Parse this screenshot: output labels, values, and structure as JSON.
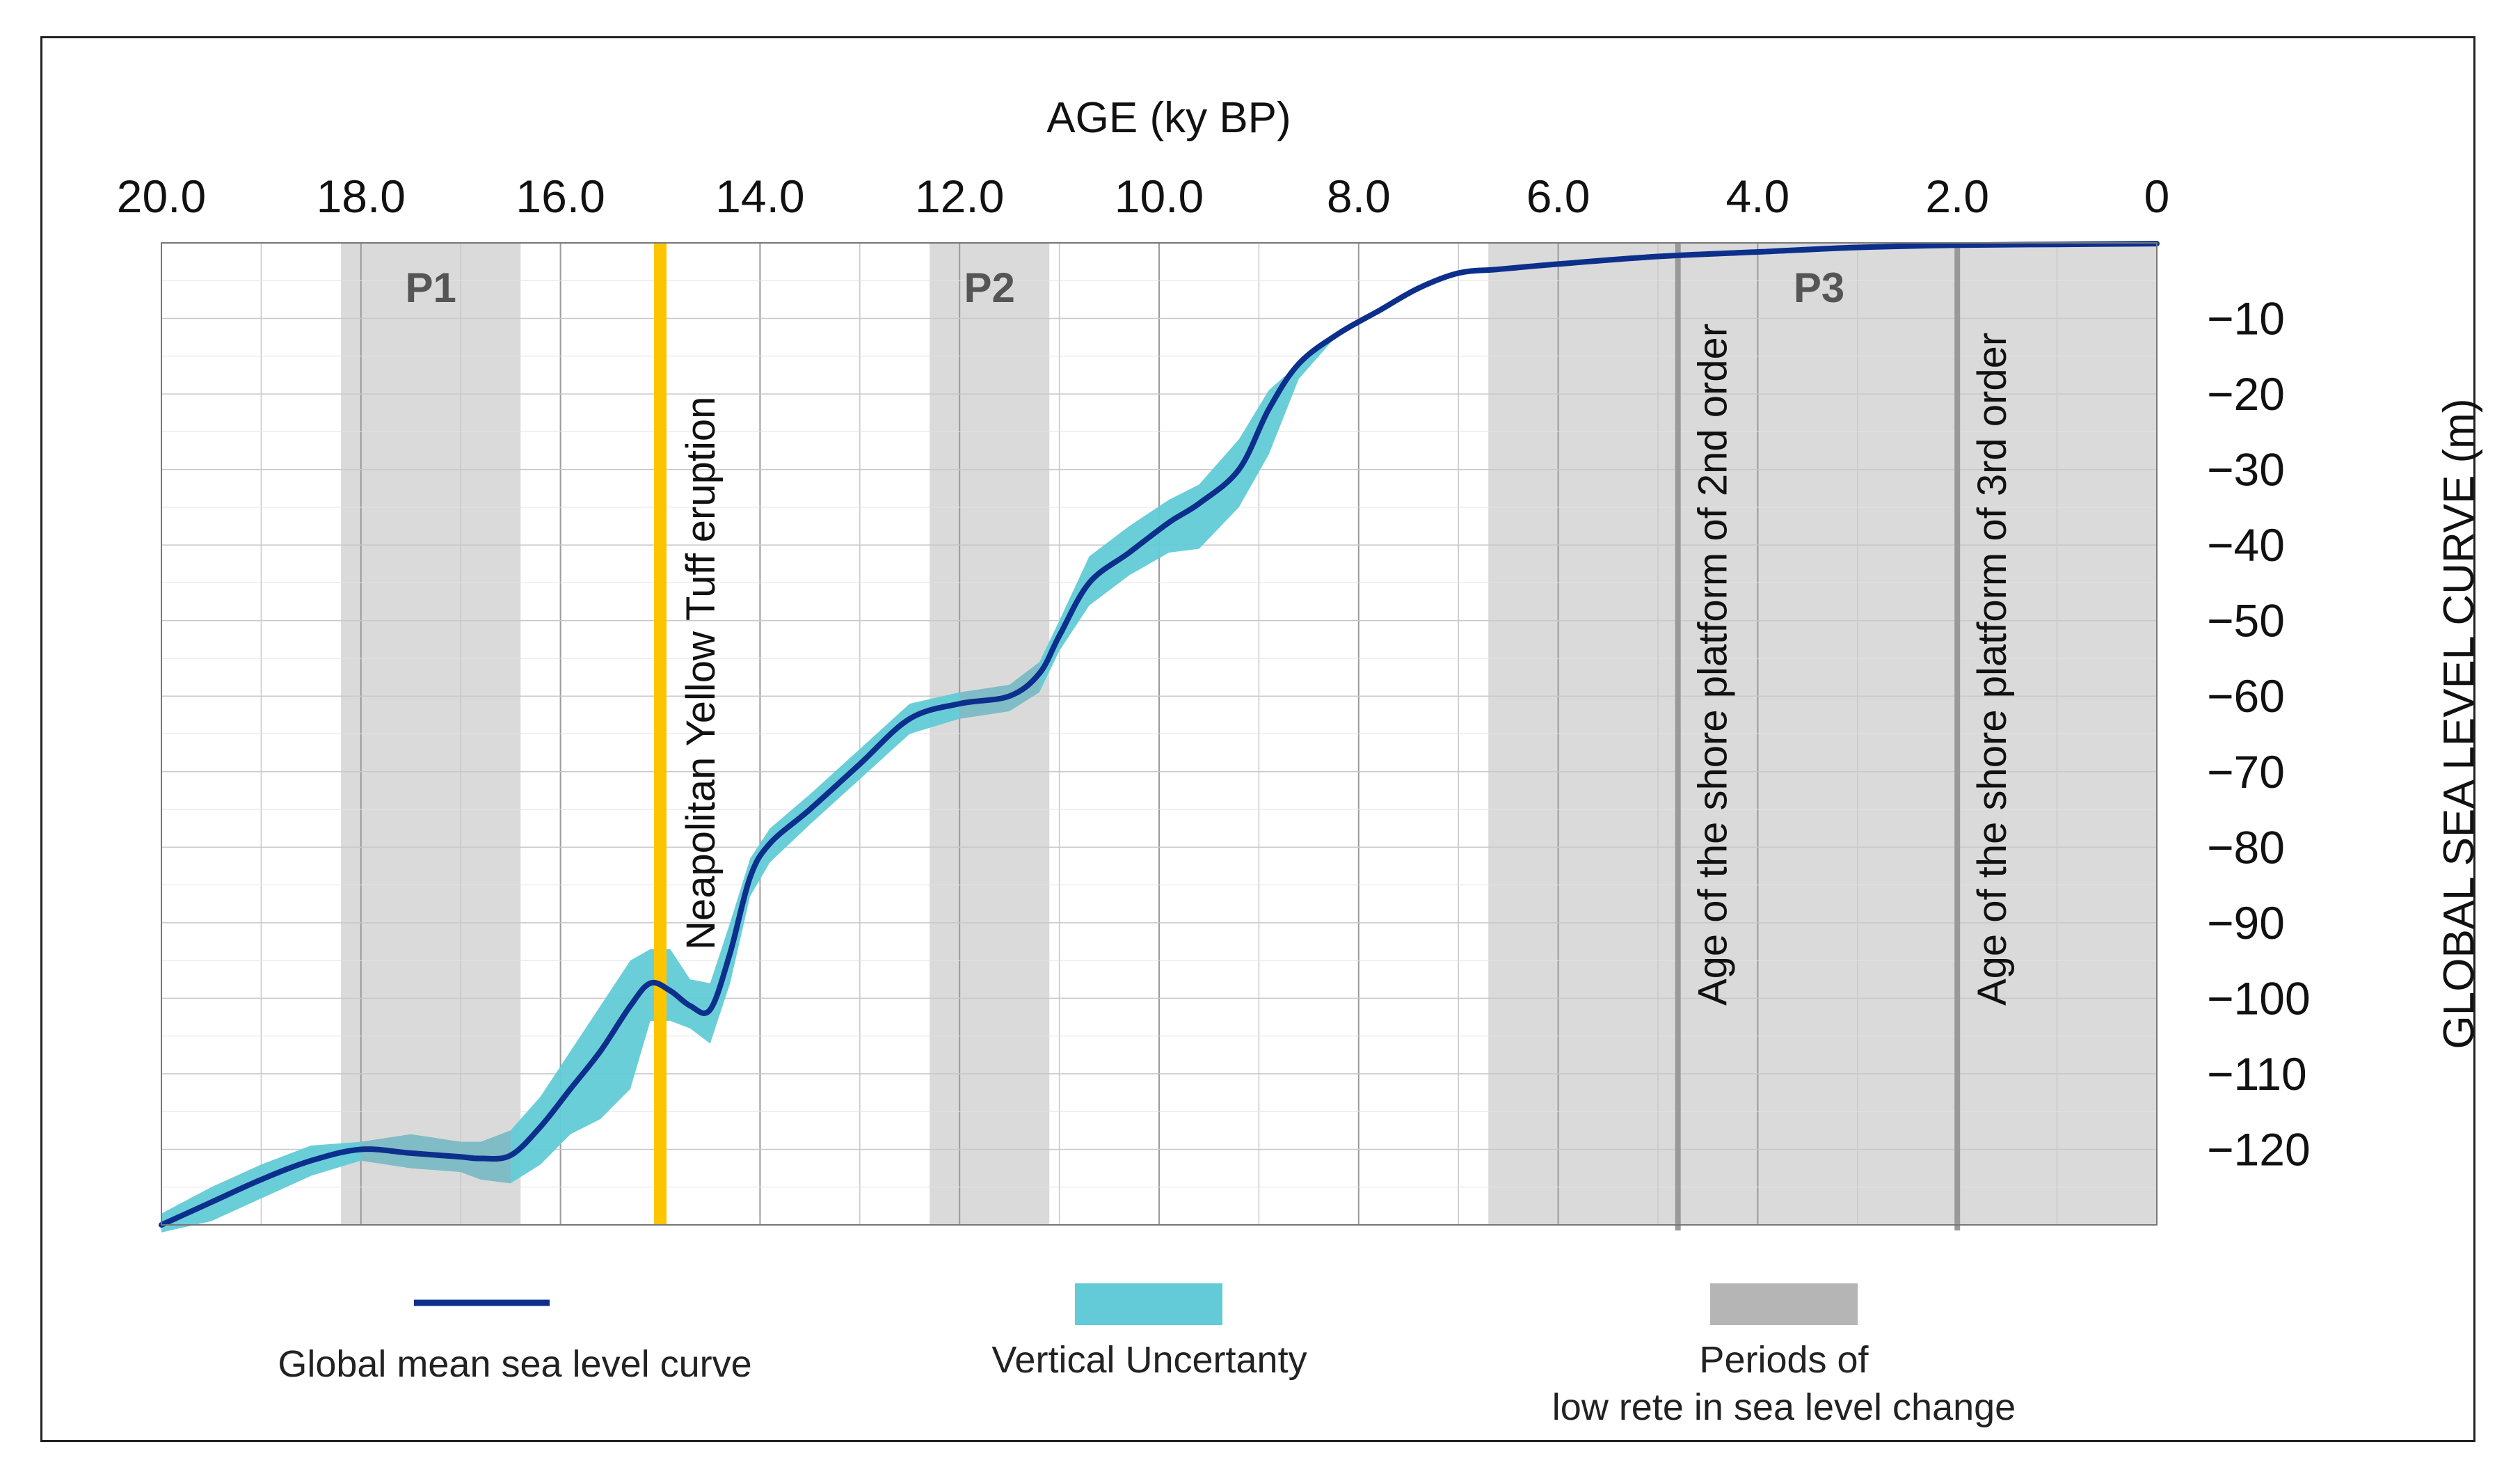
{
  "chart_data": {
    "type": "line",
    "title": "",
    "xlabel": "AGE (ky BP)",
    "ylabel": "GLOBAL SEA LEVEL CURVE (m)",
    "xlim": [
      20.0,
      0
    ],
    "ylim": [
      -130,
      0
    ],
    "x_ticks": [
      "20.0",
      "18.0",
      "16.0",
      "14.0",
      "12.0",
      "10.0",
      "8.0",
      "6.0",
      "4.0",
      "2.0",
      "0"
    ],
    "y_ticks": [
      "-10",
      "-20",
      "-30",
      "-40",
      "-50",
      "-60",
      "-70",
      "-80",
      "-90",
      "-100",
      "-110",
      "-120"
    ],
    "grid": true,
    "series": [
      {
        "name": "Global mean sea level curve",
        "color": "#0d2f8c",
        "x": [
          20.0,
          19.5,
          19.0,
          18.5,
          18.0,
          17.5,
          17.0,
          16.8,
          16.5,
          16.2,
          15.9,
          15.6,
          15.3,
          15.1,
          14.9,
          14.7,
          14.5,
          14.3,
          14.1,
          13.9,
          13.5,
          13.0,
          12.5,
          12.0,
          11.5,
          11.2,
          11.0,
          10.7,
          10.3,
          9.9,
          9.6,
          9.2,
          8.9,
          8.6,
          8.2,
          7.8,
          7.4,
          7.0,
          6.6,
          6.0,
          5.0,
          4.0,
          3.0,
          2.0,
          1.0,
          0
        ],
        "y": [
          -130,
          -127,
          -124,
          -121.5,
          -120,
          -120.5,
          -121,
          -121.2,
          -120.8,
          -117,
          -112,
          -107,
          -101,
          -98,
          -99,
          -101,
          -101.5,
          -94,
          -84,
          -79.5,
          -75,
          -69,
          -63,
          -61,
          -60,
          -57,
          -52,
          -45,
          -41,
          -37,
          -34.5,
          -30,
          -22,
          -16,
          -12,
          -9,
          -6,
          -4,
          -3.5,
          -2.8,
          -1.8,
          -1.2,
          -0.6,
          -0.3,
          -0.2,
          -0.1
        ]
      }
    ],
    "uncertainty_band": {
      "name": "Vertical Uncertanty",
      "color": "#62cbd7",
      "x": [
        20.0,
        19.5,
        19.0,
        18.5,
        18.0,
        17.5,
        17.0,
        16.8,
        16.5,
        16.2,
        15.9,
        15.6,
        15.3,
        15.1,
        14.9,
        14.7,
        14.5,
        14.3,
        14.1,
        13.9,
        13.5,
        13.0,
        12.5,
        12.0,
        11.5,
        11.2,
        11.0,
        10.7,
        10.3,
        9.9,
        9.6,
        9.2,
        8.9,
        8.6,
        8.2
      ],
      "upper": [
        -128.5,
        -125,
        -122,
        -119.5,
        -119,
        -118,
        -119,
        -119,
        -117.5,
        -113,
        -107,
        -101,
        -95,
        -93.5,
        -93.5,
        -97.5,
        -98,
        -90,
        -81.5,
        -77.5,
        -73,
        -67,
        -61,
        -59.5,
        -58.5,
        -55.5,
        -50,
        -41.5,
        -37.5,
        -34,
        -32,
        -26,
        -19.5,
        -16,
        -12
      ],
      "lower": [
        -131,
        -129.5,
        -126.5,
        -123.5,
        -121.5,
        -122.5,
        -123,
        -124,
        -124.5,
        -122,
        -118,
        -116,
        -112,
        -103,
        -103,
        -104,
        -106,
        -98,
        -86.5,
        -82,
        -77,
        -71,
        -65,
        -63,
        -62,
        -59.5,
        -54,
        -48,
        -44,
        -41,
        -40.5,
        -35,
        -28,
        -18,
        -12
      ]
    },
    "periods": [
      {
        "name": "P1",
        "start": 18.2,
        "end": 16.4
      },
      {
        "name": "P2",
        "start": 12.3,
        "end": 11.1
      },
      {
        "name": "P3",
        "start": 6.7,
        "end": 0
      }
    ],
    "vertical_lines": [
      {
        "label": "Neapolitan Yellow Tuff eruption",
        "age": 15.0,
        "color": "#fcc500"
      },
      {
        "label": "Age of the shore platform  of 2nd order",
        "age": 4.8,
        "color": "#999999"
      },
      {
        "label": "Age of the shore platform  of 3rd order",
        "age": 2.0,
        "color": "#999999"
      }
    ],
    "legend": [
      {
        "label": "Global mean sea level curve",
        "kind": "line",
        "color": "#0d2f8c"
      },
      {
        "label": "Vertical Uncertanty",
        "kind": "patch",
        "color": "#62cbd7"
      },
      {
        "label": "Periods of",
        "label2": "low rete in sea level change",
        "kind": "patch",
        "color": "#b5b5b5"
      }
    ]
  }
}
